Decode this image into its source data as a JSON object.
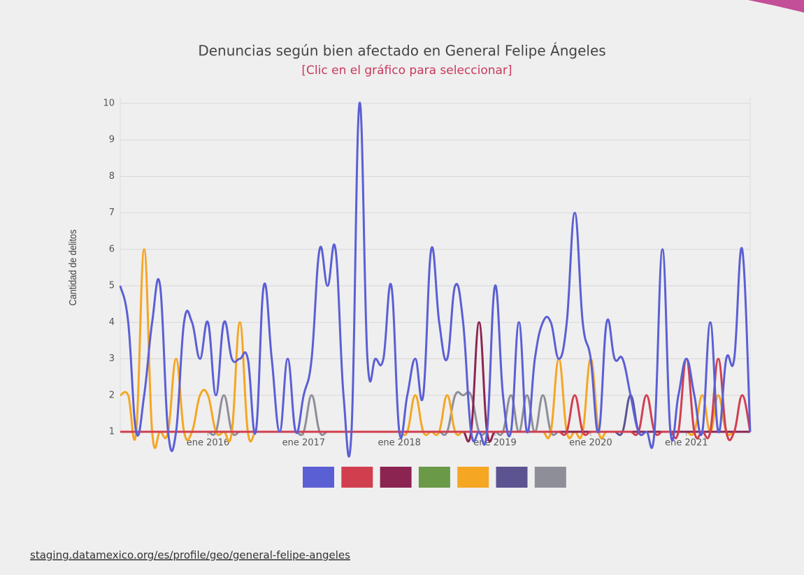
{
  "chart_data": {
    "type": "line",
    "title": "Denuncias según bien afectado en General Felipe Ángeles",
    "subtitle": "[Clic en el gráfico para seleccionar]",
    "y_label": "Cantidad de delitos",
    "source": "staging.datamexico.org/es/profile/geo/general-felipe-angeles",
    "x": [
      "2015-02",
      "2015-03",
      "2015-04",
      "2015-05",
      "2015-06",
      "2015-07",
      "2015-08",
      "2015-09",
      "2015-10",
      "2015-11",
      "2015-12",
      "2016-01",
      "2016-02",
      "2016-03",
      "2016-04",
      "2016-05",
      "2016-06",
      "2016-07",
      "2016-08",
      "2016-09",
      "2016-10",
      "2016-11",
      "2016-12",
      "2017-01",
      "2017-02",
      "2017-03",
      "2017-04",
      "2017-05",
      "2017-06",
      "2017-07",
      "2017-08",
      "2017-09",
      "2017-10",
      "2017-11",
      "2017-12",
      "2018-01",
      "2018-02",
      "2018-03",
      "2018-04",
      "2018-05",
      "2018-06",
      "2018-07",
      "2018-08",
      "2018-09",
      "2018-10",
      "2018-11",
      "2018-12",
      "2019-01",
      "2019-02",
      "2019-03",
      "2019-04",
      "2019-05",
      "2019-06",
      "2019-07",
      "2019-08",
      "2019-09",
      "2019-10",
      "2019-11",
      "2019-12",
      "2020-01",
      "2020-02",
      "2020-03",
      "2020-04",
      "2020-05",
      "2020-06",
      "2020-07",
      "2020-08",
      "2020-09",
      "2020-10",
      "2020-11",
      "2020-12",
      "2021-01",
      "2021-02",
      "2021-03",
      "2021-04",
      "2021-05",
      "2021-06",
      "2021-07",
      "2021-08",
      "2021-09"
    ],
    "xticks": [
      {
        "value": "2016-01",
        "label": "ene 2016"
      },
      {
        "value": "2017-01",
        "label": "ene 2017"
      },
      {
        "value": "2018-01",
        "label": "ene 2018"
      },
      {
        "value": "2019-01",
        "label": "ene 2019"
      },
      {
        "value": "2020-01",
        "label": "ene 2020"
      },
      {
        "value": "2021-01",
        "label": "ene 2021"
      }
    ],
    "ylim": [
      1,
      10
    ],
    "yticks": [
      1,
      2,
      3,
      4,
      5,
      6,
      7,
      8,
      9,
      10
    ],
    "grid": true,
    "series": [
      {
        "color": "#5b5fd4",
        "values": [
          5,
          4,
          1,
          2,
          4,
          5,
          1,
          1,
          4,
          4,
          3,
          4,
          2,
          4,
          3,
          3,
          3,
          1,
          5,
          3,
          1,
          3,
          1,
          2,
          3,
          6,
          5,
          6,
          2,
          1,
          10,
          3,
          3,
          3,
          5,
          1,
          2,
          3,
          2,
          6,
          4,
          3,
          5,
          4,
          1,
          1,
          1,
          5,
          2,
          1,
          4,
          1,
          3,
          4,
          4,
          3,
          4,
          7,
          4,
          3,
          1,
          4,
          3,
          3,
          2,
          1,
          1,
          1,
          6,
          1,
          2,
          3,
          2,
          1,
          4,
          1,
          3,
          3,
          6,
          1
        ]
      },
      {
        "color": "#d13f4f",
        "values": [
          1,
          1,
          1,
          1,
          1,
          1,
          1,
          1,
          1,
          1,
          1,
          1,
          1,
          1,
          1,
          1,
          1,
          1,
          1,
          1,
          1,
          1,
          1,
          1,
          1,
          1,
          1,
          1,
          1,
          1,
          1,
          1,
          1,
          1,
          1,
          1,
          1,
          1,
          1,
          1,
          1,
          1,
          1,
          1,
          1,
          1,
          1,
          1,
          1,
          1,
          1,
          1,
          1,
          1,
          1,
          1,
          1,
          2,
          1,
          1,
          1,
          1,
          1,
          1,
          1,
          1,
          2,
          1,
          1,
          1,
          1,
          3,
          1,
          1,
          1,
          3,
          1,
          1,
          2,
          1
        ]
      },
      {
        "color": "#8c2452",
        "values": [
          1,
          1,
          1,
          1,
          1,
          1,
          1,
          1,
          1,
          1,
          1,
          1,
          1,
          1,
          1,
          1,
          1,
          1,
          1,
          1,
          1,
          1,
          1,
          1,
          1,
          1,
          1,
          1,
          1,
          1,
          1,
          1,
          1,
          1,
          1,
          1,
          1,
          1,
          1,
          1,
          1,
          1,
          1,
          1,
          1,
          4,
          1,
          1,
          1,
          1,
          1,
          1,
          1,
          1,
          1,
          1,
          1,
          1,
          1,
          1,
          1,
          1,
          1,
          1,
          1,
          1,
          1,
          1,
          1,
          1,
          1,
          1,
          1,
          1,
          1,
          1,
          1,
          1,
          1,
          1
        ]
      },
      {
        "color": "#6a9a48",
        "values": [
          1,
          1,
          1,
          1,
          1,
          1,
          1,
          1,
          1,
          1,
          1,
          1,
          1,
          1,
          1,
          1,
          1,
          1,
          1,
          1,
          1,
          1,
          1,
          1,
          1,
          1,
          1,
          1,
          1,
          1,
          1,
          1,
          1,
          1,
          1,
          1,
          1,
          1,
          1,
          1,
          1,
          1,
          1,
          1,
          1,
          1,
          1,
          1,
          1,
          1,
          1,
          1,
          1,
          1,
          1,
          1,
          1,
          1,
          1,
          1,
          1,
          1,
          1,
          1,
          1,
          1,
          1,
          1,
          1,
          1,
          1,
          1,
          1,
          1,
          1,
          1,
          1,
          1,
          1,
          1
        ]
      },
      {
        "color": "#f5a623",
        "values": [
          2,
          2,
          1,
          6,
          1,
          1,
          1,
          3,
          1,
          1,
          2,
          2,
          1,
          1,
          1,
          4,
          1,
          1,
          1,
          1,
          1,
          1,
          1,
          1,
          1,
          1,
          1,
          1,
          1,
          1,
          1,
          1,
          1,
          1,
          1,
          1,
          1,
          2,
          1,
          1,
          1,
          2,
          1,
          1,
          1,
          1,
          1,
          1,
          1,
          1,
          1,
          1,
          1,
          1,
          1,
          3,
          1,
          1,
          1,
          3,
          1,
          1,
          1,
          1,
          1,
          1,
          1,
          1,
          1,
          1,
          1,
          1,
          1,
          2,
          1,
          2,
          1,
          1,
          1,
          1
        ]
      },
      {
        "color": "#5c5391",
        "values": [
          1,
          1,
          1,
          1,
          1,
          1,
          1,
          1,
          1,
          1,
          1,
          1,
          1,
          1,
          1,
          1,
          1,
          1,
          1,
          1,
          1,
          1,
          1,
          1,
          1,
          1,
          1,
          1,
          1,
          1,
          1,
          1,
          1,
          1,
          1,
          1,
          1,
          1,
          1,
          1,
          1,
          1,
          1,
          1,
          1,
          1,
          1,
          1,
          1,
          1,
          1,
          1,
          1,
          1,
          1,
          1,
          1,
          1,
          1,
          1,
          1,
          1,
          1,
          1,
          2,
          1,
          1,
          1,
          1,
          1,
          1,
          1,
          1,
          1,
          1,
          1,
          1,
          1,
          1,
          1
        ]
      },
      {
        "color": "#8e8e99",
        "values": [
          1,
          1,
          1,
          1,
          1,
          1,
          1,
          1,
          1,
          1,
          1,
          1,
          1,
          2,
          1,
          1,
          1,
          1,
          1,
          1,
          1,
          1,
          1,
          1,
          2,
          1,
          1,
          1,
          1,
          1,
          1,
          1,
          1,
          1,
          1,
          1,
          1,
          1,
          1,
          1,
          1,
          1,
          2,
          2,
          2,
          1,
          1,
          1,
          1,
          2,
          1,
          2,
          1,
          2,
          1,
          1,
          1,
          1,
          1,
          1,
          1,
          1,
          1,
          1,
          1,
          1,
          1,
          1,
          1,
          1,
          1,
          1,
          1,
          1,
          1,
          1,
          1,
          1,
          1,
          1
        ]
      }
    ]
  }
}
